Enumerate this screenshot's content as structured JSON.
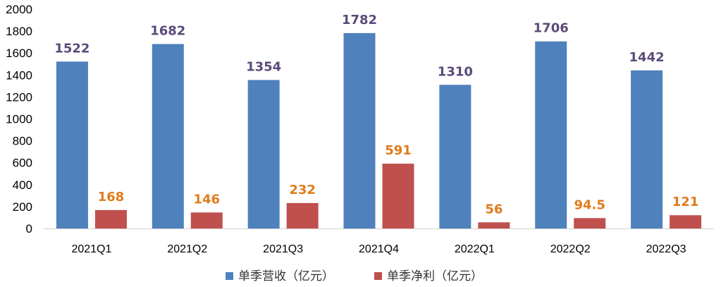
{
  "chart_data": {
    "type": "bar",
    "categories": [
      "2021Q1",
      "2021Q2",
      "2021Q3",
      "2021Q4",
      "2022Q1",
      "2022Q2",
      "2022Q3"
    ],
    "series": [
      {
        "name": "单季营收（亿元）",
        "values": [
          1522,
          1682,
          1354,
          1782,
          1310,
          1706,
          1442
        ],
        "labels": [
          "1522",
          "1682",
          "1354",
          "1782",
          "1310",
          "1706",
          "1442"
        ],
        "color": "#4f81bd",
        "label_color": "#5b4a7a"
      },
      {
        "name": "单季净利（亿元）",
        "values": [
          168,
          146,
          232,
          591,
          56,
          94.5,
          121
        ],
        "labels": [
          "168",
          "146",
          "232",
          "591",
          "56",
          "94.5",
          "121"
        ],
        "color": "#c0504d",
        "label_color": "#e07b1b"
      }
    ],
    "ylim": [
      0,
      2000
    ],
    "yticks": [
      "0",
      "200",
      "400",
      "600",
      "800",
      "1000",
      "1200",
      "1400",
      "1600",
      "1800",
      "2000"
    ],
    "grid": false,
    "legend": "bottom-center"
  }
}
